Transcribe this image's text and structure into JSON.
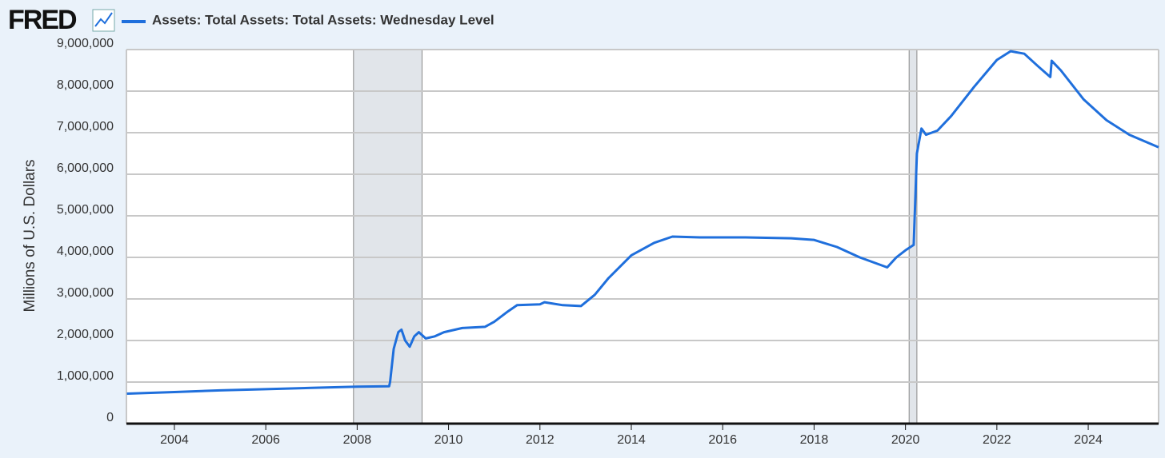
{
  "chart_data": {
    "type": "line",
    "logo": "FRED",
    "y_label": "Millions of U.S. Dollars",
    "x": [
      2002.96,
      2004,
      2005,
      2006,
      2007,
      2008,
      2008.7,
      2008.72,
      2008.8,
      2008.9,
      2008.97,
      2009.05,
      2009.15,
      2009.25,
      2009.35,
      2009.5,
      2009.7,
      2009.9,
      2010.3,
      2010.8,
      2011.0,
      2011.3,
      2011.5,
      2012.0,
      2012.1,
      2012.5,
      2012.9,
      2013.2,
      2013.5,
      2014.0,
      2014.5,
      2014.9,
      2015.5,
      2016.5,
      2017.5,
      2018.0,
      2018.5,
      2019.0,
      2019.6,
      2019.8,
      2020.0,
      2020.18,
      2020.25,
      2020.35,
      2020.45,
      2020.7,
      2021.0,
      2021.5,
      2022.0,
      2022.3,
      2022.6,
      2022.9,
      2023.17,
      2023.2,
      2023.4,
      2023.9,
      2024.4,
      2024.9,
      2025.54
    ],
    "series": [
      {
        "name": "Assets: Total Assets: Total Assets: Wednesday Level",
        "color": "#1f6fdc",
        "values": [
          720000,
          760000,
          800000,
          830000,
          860000,
          890000,
          900000,
          1000000,
          1800000,
          2200000,
          2260000,
          2000000,
          1850000,
          2100000,
          2200000,
          2050000,
          2100000,
          2200000,
          2300000,
          2330000,
          2450000,
          2700000,
          2850000,
          2870000,
          2920000,
          2850000,
          2830000,
          3100000,
          3500000,
          4050000,
          4350000,
          4500000,
          4480000,
          4480000,
          4460000,
          4420000,
          4250000,
          4000000,
          3760000,
          4000000,
          4170000,
          4300000,
          6500000,
          7100000,
          6950000,
          7050000,
          7400000,
          8100000,
          8750000,
          8960000,
          8900000,
          8600000,
          8340000,
          8730000,
          8500000,
          7800000,
          7300000,
          6950000,
          6650000
        ]
      }
    ],
    "recessions": [
      [
        2007.92,
        2009.42
      ],
      [
        2020.08,
        2020.25
      ]
    ],
    "xlim": [
      2002.95,
      2025.54
    ],
    "xticks": [
      2004,
      2006,
      2008,
      2010,
      2012,
      2014,
      2016,
      2018,
      2020,
      2022,
      2024
    ],
    "ylim": [
      0,
      9000000
    ],
    "yticks": [
      0,
      {
        "value": 1000000,
        "label": "1,000,000"
      },
      {
        "value": 2000000,
        "label": "2,000,000"
      },
      {
        "value": 3000000,
        "label": "3,000,000"
      },
      {
        "value": 4000000,
        "label": "4,000,000"
      },
      {
        "value": 5000000,
        "label": "5,000,000"
      },
      {
        "value": 6000000,
        "label": "6,000,000"
      },
      {
        "value": 7000000,
        "label": "7,000,000"
      },
      {
        "value": 8000000,
        "label": "8,000,000"
      },
      {
        "value": 9000000,
        "label": "9,000,000"
      }
    ],
    "grid": true
  }
}
